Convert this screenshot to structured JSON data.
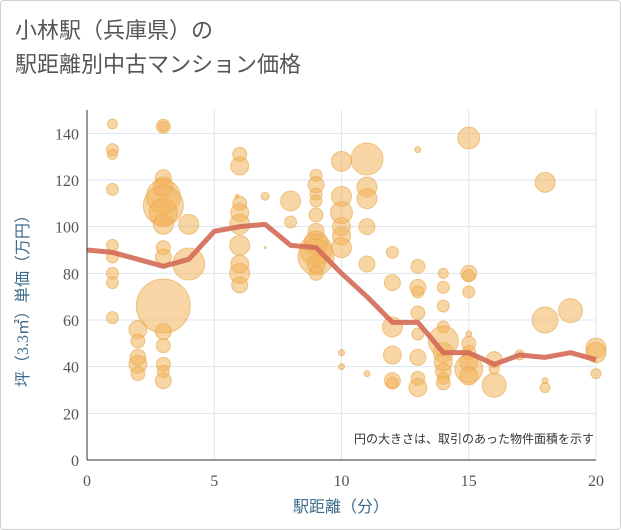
{
  "chart_data": {
    "type": "scatter",
    "title": "小林駅（兵庫県）の\n駅距離別中古マンション価格",
    "xlabel": "駅距離（分）",
    "ylabel": "坪（3.3㎡）単価（万円）",
    "xlim": [
      0,
      20
    ],
    "ylim": [
      0,
      150
    ],
    "xticks": [
      0,
      5,
      10,
      15,
      20
    ],
    "yticks": [
      0,
      20,
      40,
      60,
      80,
      100,
      120,
      140
    ],
    "grid": true,
    "note": "円の大きさは、取引のあった物件面積を示す",
    "colors": {
      "bubble": "#f2b25a",
      "bubble_edge": "#e8a64a",
      "line": "#d46a55",
      "grid": "#dde6ee"
    },
    "series": [
      {
        "kind": "bubble",
        "points": [
          {
            "x": 1,
            "y": 144,
            "s": 5
          },
          {
            "x": 1,
            "y": 133,
            "s": 6
          },
          {
            "x": 1,
            "y": 131,
            "s": 5
          },
          {
            "x": 1,
            "y": 116,
            "s": 6
          },
          {
            "x": 1,
            "y": 92,
            "s": 6
          },
          {
            "x": 1,
            "y": 87,
            "s": 6
          },
          {
            "x": 1,
            "y": 80,
            "s": 6
          },
          {
            "x": 1,
            "y": 76,
            "s": 6
          },
          {
            "x": 1,
            "y": 61,
            "s": 6
          },
          {
            "x": 2,
            "y": 56,
            "s": 9
          },
          {
            "x": 2,
            "y": 51,
            "s": 7
          },
          {
            "x": 2,
            "y": 44,
            "s": 8
          },
          {
            "x": 2,
            "y": 41,
            "s": 9
          },
          {
            "x": 2,
            "y": 37,
            "s": 7
          },
          {
            "x": 3,
            "y": 143,
            "s": 7
          },
          {
            "x": 3,
            "y": 143,
            "s": 5
          },
          {
            "x": 3,
            "y": 121,
            "s": 8
          },
          {
            "x": 3,
            "y": 117,
            "s": 10
          },
          {
            "x": 3,
            "y": 113,
            "s": 17
          },
          {
            "x": 3,
            "y": 109,
            "s": 20
          },
          {
            "x": 3,
            "y": 106,
            "s": 14
          },
          {
            "x": 3,
            "y": 101,
            "s": 10
          },
          {
            "x": 3,
            "y": 91,
            "s": 7
          },
          {
            "x": 3,
            "y": 87,
            "s": 8
          },
          {
            "x": 3,
            "y": 66,
            "s": 27
          },
          {
            "x": 3,
            "y": 55,
            "s": 8
          },
          {
            "x": 3,
            "y": 49,
            "s": 7
          },
          {
            "x": 3,
            "y": 41,
            "s": 7
          },
          {
            "x": 3,
            "y": 38,
            "s": 6
          },
          {
            "x": 3,
            "y": 34,
            "s": 8
          },
          {
            "x": 4,
            "y": 101,
            "s": 10
          },
          {
            "x": 4,
            "y": 84,
            "s": 16
          },
          {
            "x": 5.9,
            "y": 113,
            "s": 2
          },
          {
            "x": 6,
            "y": 131,
            "s": 7
          },
          {
            "x": 6,
            "y": 126,
            "s": 9
          },
          {
            "x": 6,
            "y": 110,
            "s": 7
          },
          {
            "x": 6,
            "y": 106,
            "s": 9
          },
          {
            "x": 6,
            "y": 101,
            "s": 10
          },
          {
            "x": 6,
            "y": 92,
            "s": 10
          },
          {
            "x": 6,
            "y": 84,
            "s": 9
          },
          {
            "x": 6,
            "y": 80,
            "s": 10
          },
          {
            "x": 6,
            "y": 75,
            "s": 8
          },
          {
            "x": 7,
            "y": 113,
            "s": 4
          },
          {
            "x": 7,
            "y": 91,
            "s": 1
          },
          {
            "x": 8,
            "y": 111,
            "s": 10
          },
          {
            "x": 8,
            "y": 102,
            "s": 6
          },
          {
            "x": 9,
            "y": 122,
            "s": 6
          },
          {
            "x": 9,
            "y": 118,
            "s": 8
          },
          {
            "x": 9,
            "y": 114,
            "s": 6
          },
          {
            "x": 9,
            "y": 111,
            "s": 6
          },
          {
            "x": 9,
            "y": 105,
            "s": 7
          },
          {
            "x": 9,
            "y": 98,
            "s": 8
          },
          {
            "x": 9,
            "y": 93,
            "s": 12
          },
          {
            "x": 9,
            "y": 90,
            "s": 16
          },
          {
            "x": 9,
            "y": 87,
            "s": 18
          },
          {
            "x": 9,
            "y": 84,
            "s": 9
          },
          {
            "x": 9,
            "y": 80,
            "s": 7
          },
          {
            "x": 10,
            "y": 128,
            "s": 10
          },
          {
            "x": 10,
            "y": 113,
            "s": 10
          },
          {
            "x": 10,
            "y": 106,
            "s": 11
          },
          {
            "x": 10,
            "y": 100,
            "s": 9
          },
          {
            "x": 10,
            "y": 96,
            "s": 9
          },
          {
            "x": 10,
            "y": 91,
            "s": 10
          },
          {
            "x": 10,
            "y": 46,
            "s": 3
          },
          {
            "x": 10,
            "y": 40,
            "s": 3
          },
          {
            "x": 11,
            "y": 129,
            "s": 16
          },
          {
            "x": 11,
            "y": 117,
            "s": 10
          },
          {
            "x": 11,
            "y": 112,
            "s": 10
          },
          {
            "x": 11,
            "y": 100,
            "s": 8
          },
          {
            "x": 11,
            "y": 84,
            "s": 8
          },
          {
            "x": 11,
            "y": 37,
            "s": 3
          },
          {
            "x": 12,
            "y": 89,
            "s": 6
          },
          {
            "x": 12,
            "y": 76,
            "s": 8
          },
          {
            "x": 12,
            "y": 57,
            "s": 10
          },
          {
            "x": 12,
            "y": 45,
            "s": 9
          },
          {
            "x": 12,
            "y": 34,
            "s": 8
          },
          {
            "x": 12,
            "y": 33,
            "s": 6
          },
          {
            "x": 13,
            "y": 133,
            "s": 3
          },
          {
            "x": 13,
            "y": 83,
            "s": 7
          },
          {
            "x": 13,
            "y": 74,
            "s": 8
          },
          {
            "x": 13,
            "y": 72,
            "s": 6
          },
          {
            "x": 13,
            "y": 63,
            "s": 7
          },
          {
            "x": 13,
            "y": 54,
            "s": 6
          },
          {
            "x": 13,
            "y": 44,
            "s": 8
          },
          {
            "x": 13,
            "y": 35,
            "s": 7
          },
          {
            "x": 13,
            "y": 31,
            "s": 9
          },
          {
            "x": 14,
            "y": 80,
            "s": 5
          },
          {
            "x": 14,
            "y": 74,
            "s": 6
          },
          {
            "x": 14,
            "y": 66,
            "s": 6
          },
          {
            "x": 14,
            "y": 57,
            "s": 6
          },
          {
            "x": 14,
            "y": 51,
            "s": 15
          },
          {
            "x": 14,
            "y": 46,
            "s": 10
          },
          {
            "x": 14,
            "y": 42,
            "s": 9
          },
          {
            "x": 14,
            "y": 38,
            "s": 8
          },
          {
            "x": 14,
            "y": 35,
            "s": 6
          },
          {
            "x": 14,
            "y": 33,
            "s": 7
          },
          {
            "x": 15,
            "y": 138,
            "s": 11
          },
          {
            "x": 15,
            "y": 80,
            "s": 8
          },
          {
            "x": 15,
            "y": 79,
            "s": 6
          },
          {
            "x": 15,
            "y": 72,
            "s": 6
          },
          {
            "x": 15,
            "y": 54,
            "s": 3
          },
          {
            "x": 15,
            "y": 50,
            "s": 7
          },
          {
            "x": 15,
            "y": 46,
            "s": 7
          },
          {
            "x": 15,
            "y": 42,
            "s": 9
          },
          {
            "x": 15,
            "y": 39,
            "s": 14
          },
          {
            "x": 15,
            "y": 36,
            "s": 9
          },
          {
            "x": 16,
            "y": 43,
            "s": 8
          },
          {
            "x": 16,
            "y": 39,
            "s": 5
          },
          {
            "x": 16,
            "y": 32,
            "s": 12
          },
          {
            "x": 17,
            "y": 45,
            "s": 5
          },
          {
            "x": 18,
            "y": 119,
            "s": 10
          },
          {
            "x": 18,
            "y": 60,
            "s": 13
          },
          {
            "x": 18,
            "y": 34,
            "s": 3
          },
          {
            "x": 18,
            "y": 31,
            "s": 5
          },
          {
            "x": 19,
            "y": 64,
            "s": 12
          },
          {
            "x": 20,
            "y": 48,
            "s": 10
          },
          {
            "x": 20,
            "y": 46,
            "s": 10
          },
          {
            "x": 20,
            "y": 37,
            "s": 5
          }
        ]
      },
      {
        "kind": "line",
        "x": [
          0,
          1,
          2,
          3,
          4,
          5,
          6,
          7,
          8,
          9,
          10,
          11,
          12,
          13,
          14,
          15,
          16,
          17,
          18,
          19,
          20
        ],
        "y": [
          90,
          89,
          86,
          83,
          86,
          98,
          100,
          101,
          92,
          91,
          80,
          70,
          59,
          59,
          46,
          46,
          41,
          45,
          44,
          46,
          43
        ]
      }
    ]
  }
}
